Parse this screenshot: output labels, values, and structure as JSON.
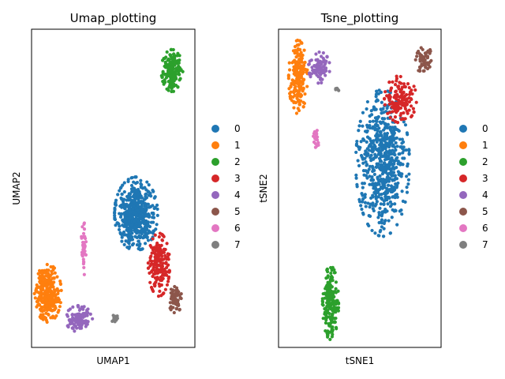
{
  "chart_data": [
    {
      "type": "scatter",
      "title": "Umap_plotting",
      "xlabel": "UMAP1",
      "ylabel": "UMAP2",
      "xlim": [
        0,
        100
      ],
      "ylim": [
        0,
        100
      ],
      "grid": false,
      "legend_position": "right",
      "series": [
        {
          "name": "0",
          "color": "#1f77b4",
          "center": [
            64,
            42
          ],
          "spread": [
            8,
            7
          ],
          "count": 520
        },
        {
          "name": "1",
          "color": "#ff7f0e",
          "center": [
            10,
            17
          ],
          "spread": [
            5,
            5.5
          ],
          "count": 280
        },
        {
          "name": "2",
          "color": "#2ca02c",
          "center": [
            86,
            87
          ],
          "spread": [
            4,
            4
          ],
          "count": 180
        },
        {
          "name": "3",
          "color": "#d62728",
          "center": [
            78,
            26
          ],
          "spread": [
            4,
            6
          ],
          "count": 190
        },
        {
          "name": "4",
          "color": "#9467bd",
          "center": [
            29,
            9
          ],
          "spread": [
            5,
            2.5
          ],
          "count": 110
        },
        {
          "name": "5",
          "color": "#8c564b",
          "center": [
            88,
            15
          ],
          "spread": [
            2.5,
            2.5
          ],
          "count": 70
        },
        {
          "name": "6",
          "color": "#e377c2",
          "center": [
            32,
            31
          ],
          "spread": [
            1,
            5
          ],
          "count": 40
        },
        {
          "name": "7",
          "color": "#7f7f7f",
          "center": [
            51,
            9
          ],
          "spread": [
            1.2,
            0.8
          ],
          "count": 14
        }
      ]
    },
    {
      "type": "scatter",
      "title": "Tsne_plotting",
      "xlabel": "tSNE1",
      "ylabel": "tSNE2",
      "xlim": [
        0,
        100
      ],
      "ylim": [
        0,
        100
      ],
      "grid": false,
      "legend_position": "right",
      "series": [
        {
          "name": "0",
          "color": "#1f77b4",
          "center": [
            64,
            58
          ],
          "spread": [
            10,
            14
          ],
          "count": 620
        },
        {
          "name": "1",
          "color": "#ff7f0e",
          "center": [
            12,
            85
          ],
          "spread": [
            3.5,
            7
          ],
          "count": 200
        },
        {
          "name": "2",
          "color": "#2ca02c",
          "center": [
            32,
            14
          ],
          "spread": [
            3,
            7
          ],
          "count": 190
        },
        {
          "name": "3",
          "color": "#d62728",
          "center": [
            75,
            78
          ],
          "spread": [
            6,
            4.5
          ],
          "count": 150
        },
        {
          "name": "4",
          "color": "#9467bd",
          "center": [
            25,
            88
          ],
          "spread": [
            4,
            3
          ],
          "count": 90
        },
        {
          "name": "5",
          "color": "#8c564b",
          "center": [
            89,
            91
          ],
          "spread": [
            3,
            3
          ],
          "count": 60
        },
        {
          "name": "6",
          "color": "#e377c2",
          "center": [
            23,
            65
          ],
          "spread": [
            1,
            3
          ],
          "count": 22
        },
        {
          "name": "7",
          "color": "#7f7f7f",
          "center": [
            36,
            81
          ],
          "spread": [
            1,
            0.6
          ],
          "count": 6
        }
      ]
    }
  ]
}
